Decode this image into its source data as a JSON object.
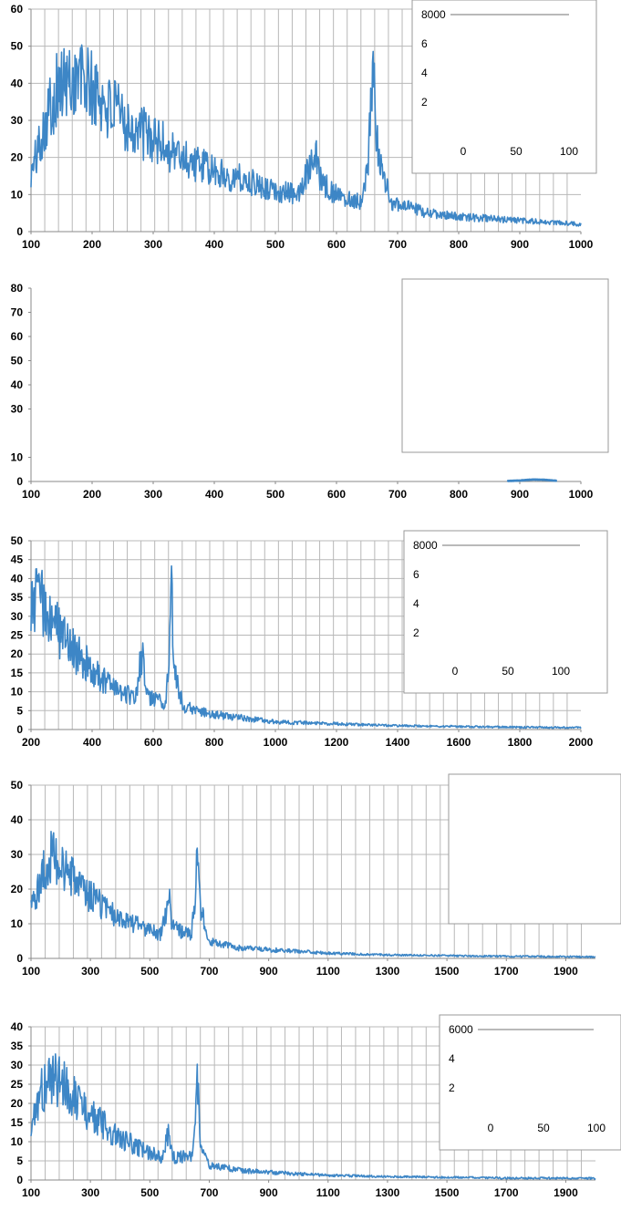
{
  "chart_data": [
    {
      "type": "line",
      "xlim": [
        100,
        1000
      ],
      "ylim": [
        0,
        60
      ],
      "xticks": [
        100,
        200,
        300,
        400,
        500,
        600,
        700,
        800,
        900,
        1000
      ],
      "yticks": [
        0,
        10,
        20,
        30,
        40,
        50,
        60
      ],
      "grid": "on",
      "series": [
        {
          "points": [
            [
              100,
              15
            ],
            [
              120,
              28
            ],
            [
              140,
              38
            ],
            [
              160,
              40
            ],
            [
              180,
              42
            ],
            [
              200,
              38
            ],
            [
              230,
              33
            ],
            [
              260,
              29
            ],
            [
              300,
              25
            ],
            [
              350,
              20
            ],
            [
              400,
              16
            ],
            [
              450,
              14
            ],
            [
              500,
              11
            ],
            [
              540,
              10
            ],
            [
              555,
              18
            ],
            [
              565,
              24
            ],
            [
              575,
              13
            ],
            [
              600,
              10
            ],
            [
              640,
              8
            ],
            [
              650,
              16
            ],
            [
              660,
              41
            ],
            [
              670,
              18
            ],
            [
              690,
              8
            ],
            [
              750,
              5
            ],
            [
              800,
              4
            ],
            [
              900,
              3
            ],
            [
              1000,
              2
            ]
          ]
        }
      ],
      "inset": {
        "type": "line",
        "placement": "top-right",
        "ytick_labels": [
          "8000",
          "6",
          "4",
          "2"
        ],
        "xtick_labels": [
          "0",
          "50",
          "100"
        ]
      }
    },
    {
      "type": "line",
      "xlim": [
        100,
        1000
      ],
      "ylim": [
        0,
        80
      ],
      "xticks": [
        100,
        200,
        300,
        400,
        500,
        600,
        700,
        800,
        900,
        1000
      ],
      "yticks": [
        0,
        10,
        30,
        40,
        50,
        60,
        70,
        80
      ],
      "grid": "off",
      "series": [
        {
          "points": [
            [
              880,
              0.2
            ],
            [
              900,
              0.4
            ],
            [
              920,
              0.8
            ],
            [
              940,
              0.7
            ],
            [
              960,
              0.3
            ]
          ]
        }
      ],
      "inset": {
        "type": "blank",
        "placement": "top-right"
      }
    },
    {
      "type": "line",
      "xlim": [
        200,
        2000
      ],
      "ylim": [
        0,
        50
      ],
      "xticks": [
        200,
        400,
        600,
        800,
        1000,
        1200,
        1400,
        1600,
        1800,
        2000
      ],
      "yticks": [
        0,
        5,
        10,
        15,
        20,
        25,
        30,
        35,
        40,
        45,
        50
      ],
      "grid": "on",
      "series": [
        {
          "points": [
            [
              200,
              30
            ],
            [
              220,
              38
            ],
            [
              250,
              30
            ],
            [
              300,
              25
            ],
            [
              350,
              20
            ],
            [
              400,
              16
            ],
            [
              450,
              12
            ],
            [
              500,
              10
            ],
            [
              540,
              8
            ],
            [
              555,
              16
            ],
            [
              565,
              20
            ],
            [
              575,
              10
            ],
            [
              600,
              8
            ],
            [
              640,
              7
            ],
            [
              650,
              15
            ],
            [
              660,
              37
            ],
            [
              670,
              15
            ],
            [
              700,
              6
            ],
            [
              800,
              4
            ],
            [
              900,
              3
            ],
            [
              1000,
              2
            ],
            [
              1200,
              1.5
            ],
            [
              1400,
              1
            ],
            [
              1600,
              0.8
            ],
            [
              1800,
              0.6
            ],
            [
              2000,
              0.5
            ]
          ]
        }
      ],
      "inset": {
        "type": "line",
        "placement": "top-right",
        "ytick_labels": [
          "8000",
          "6",
          "4",
          "2"
        ],
        "xtick_labels": [
          "0",
          "50",
          "100"
        ]
      }
    },
    {
      "type": "line",
      "xlim": [
        100,
        2000
      ],
      "ylim": [
        0,
        50
      ],
      "xticks": [
        100,
        300,
        500,
        700,
        900,
        1100,
        1300,
        1500,
        1700,
        1900
      ],
      "yticks": [
        0,
        10,
        20,
        30,
        40,
        50
      ],
      "grid": "on",
      "series": [
        {
          "points": [
            [
              100,
              15
            ],
            [
              130,
              22
            ],
            [
              160,
              30
            ],
            [
              200,
              26
            ],
            [
              250,
              22
            ],
            [
              300,
              18
            ],
            [
              350,
              14
            ],
            [
              400,
              12
            ],
            [
              450,
              10
            ],
            [
              500,
              8
            ],
            [
              540,
              7
            ],
            [
              555,
              14
            ],
            [
              565,
              17
            ],
            [
              575,
              9
            ],
            [
              600,
              8
            ],
            [
              640,
              7
            ],
            [
              650,
              15
            ],
            [
              660,
              31
            ],
            [
              670,
              14
            ],
            [
              700,
              5
            ],
            [
              800,
              3
            ],
            [
              900,
              2.5
            ],
            [
              1100,
              1.5
            ],
            [
              1300,
              1
            ],
            [
              1500,
              0.8
            ],
            [
              1700,
              0.6
            ],
            [
              1900,
              0.5
            ],
            [
              2000,
              0.4
            ]
          ]
        }
      ],
      "inset": {
        "type": "blank",
        "placement": "top-right"
      }
    },
    {
      "type": "line",
      "xlim": [
        100,
        2000
      ],
      "ylim": [
        0,
        40
      ],
      "xticks": [
        100,
        300,
        500,
        700,
        900,
        1100,
        1300,
        1500,
        1700,
        1900
      ],
      "yticks": [
        0,
        5,
        10,
        15,
        20,
        25,
        30,
        35,
        40
      ],
      "grid": "on",
      "series": [
        {
          "points": [
            [
              100,
              14
            ],
            [
              130,
              22
            ],
            [
              160,
              26
            ],
            [
              200,
              26
            ],
            [
              250,
              21
            ],
            [
              300,
              17
            ],
            [
              350,
              14
            ],
            [
              400,
              11
            ],
            [
              450,
              9
            ],
            [
              500,
              7
            ],
            [
              540,
              6
            ],
            [
              555,
              10
            ],
            [
              565,
              12
            ],
            [
              575,
              6
            ],
            [
              600,
              6
            ],
            [
              640,
              6
            ],
            [
              650,
              12
            ],
            [
              660,
              26
            ],
            [
              670,
              10
            ],
            [
              700,
              4
            ],
            [
              800,
              2.5
            ],
            [
              900,
              2
            ],
            [
              1100,
              1.2
            ],
            [
              1300,
              0.9
            ],
            [
              1500,
              0.7
            ],
            [
              1700,
              0.5
            ],
            [
              1900,
              0.5
            ],
            [
              2000,
              0.4
            ]
          ]
        }
      ],
      "inset": {
        "type": "line",
        "placement": "top-right",
        "ytick_labels": [
          "6000",
          "4",
          "2"
        ],
        "xtick_labels": [
          "0",
          "50",
          "100"
        ]
      }
    }
  ],
  "colors": {
    "line": "#3d86c6",
    "grid": "#b8b8b8",
    "axis": "#8a8a8a",
    "text": "#000000"
  }
}
